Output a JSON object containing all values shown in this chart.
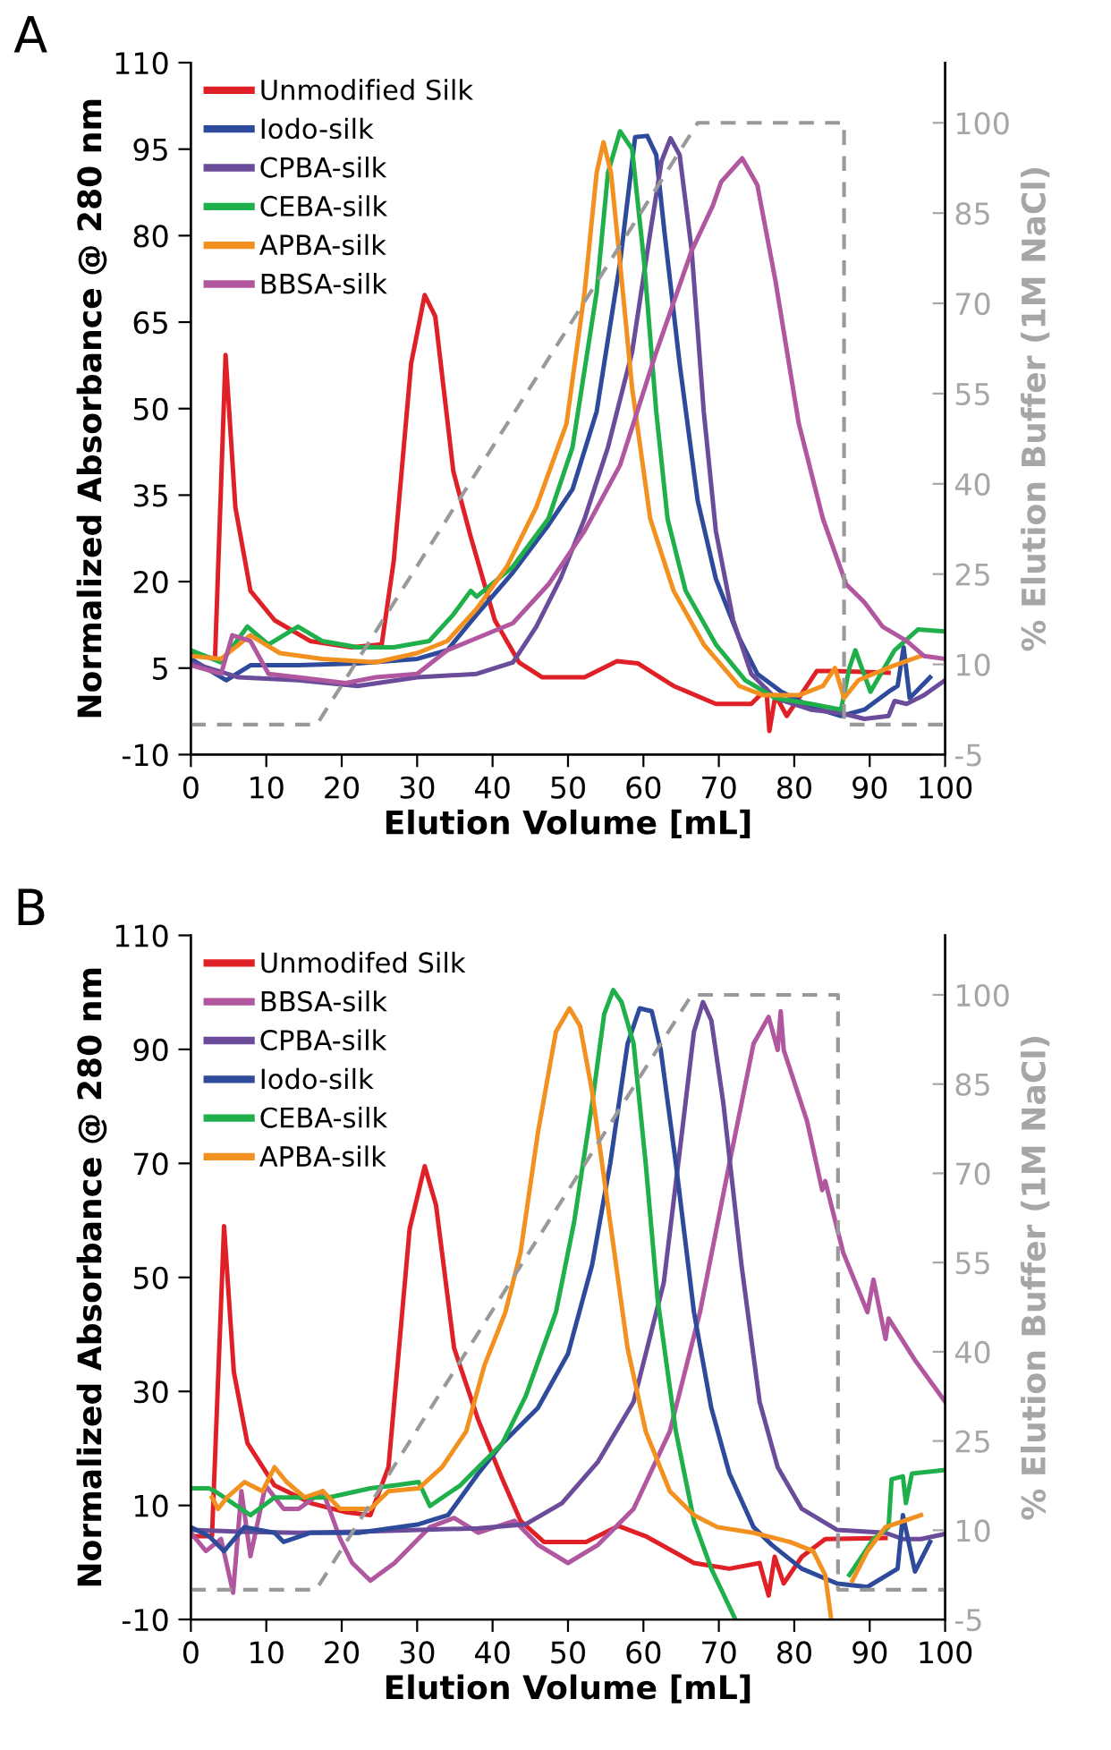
{
  "chart_data": [
    {
      "type": "line",
      "title": "A",
      "xlabel": "Elution Volume [mL]",
      "ylabel": "Normalized Absorbance @ 280 nm",
      "y2label": "% Elution Buffer (1M NaCl)",
      "xlim": [
        0,
        100
      ],
      "xticks": [
        0,
        10,
        20,
        30,
        40,
        50,
        60,
        70,
        80,
        90,
        100
      ],
      "ylim": [
        -10,
        110
      ],
      "yticks": [
        -10,
        5,
        20,
        35,
        50,
        65,
        80,
        95,
        110
      ],
      "y2lim": [
        -5,
        110
      ],
      "y2ticks": [
        -5,
        10,
        25,
        40,
        55,
        70,
        85,
        100
      ],
      "legend": "top left",
      "grid": false,
      "series": [
        {
          "name": "Unmodified Silk",
          "color": "#e02027",
          "x": [
            0,
            3.2,
            4.6,
            5.9,
            7.9,
            11.1,
            15.8,
            21.3,
            25.3,
            26.9,
            29.2,
            31.0,
            32.4,
            34.8,
            37.1,
            40.3,
            43.5,
            46.6,
            52.2,
            56.5,
            59.3,
            64.0,
            69.6,
            74.3,
            76.3,
            76.7,
            77.5,
            79.0,
            83.0,
            85.4,
            92.5
          ],
          "values": [
            7.6,
            6.6,
            59.3,
            32.9,
            18.4,
            13.3,
            9.7,
            8.6,
            9.1,
            23.6,
            57.8,
            69.7,
            66.0,
            39.1,
            27.8,
            13.3,
            6.0,
            3.4,
            3.4,
            6.2,
            5.8,
            1.9,
            -1.2,
            -1.2,
            1.4,
            -5.9,
            0.3,
            -3.3,
            4.5,
            4.5,
            4.2
          ]
        },
        {
          "name": "Iodo-silk",
          "color": "#2e4a9a",
          "x": [
            0,
            4.7,
            7.9,
            14.2,
            22.1,
            30.0,
            34.0,
            37.9,
            42.7,
            47.4,
            50.6,
            53.8,
            56.9,
            58.9,
            60.5,
            61.7,
            62.8,
            64.8,
            67.2,
            69.6,
            72.7,
            75.1,
            78.3,
            82.2,
            86.2,
            89.3,
            92.5,
            93.7,
            94.5,
            95.3,
            98.0
          ],
          "values": [
            6.6,
            2.9,
            5.5,
            5.5,
            5.8,
            6.6,
            8.1,
            14.3,
            21.6,
            29.8,
            36.0,
            49.5,
            75.3,
            97.1,
            97.3,
            94.0,
            80.5,
            57.8,
            34.0,
            20.5,
            10.2,
            4.0,
            0.9,
            -1.7,
            -3.3,
            -2.2,
            0.9,
            1.9,
            8.6,
            -0.2,
            3.4
          ]
        },
        {
          "name": "CPBA-silk",
          "color": "#6b4c9a",
          "x": [
            0,
            6.3,
            14.2,
            22.1,
            30.0,
            37.9,
            42.7,
            45.8,
            49.0,
            52.2,
            55.3,
            58.5,
            60.9,
            62.4,
            63.6,
            64.8,
            66.4,
            68.0,
            69.6,
            71.9,
            74.3,
            77.5,
            82.2,
            86.2,
            89.3,
            92.5,
            93.3,
            94.9,
            97.2,
            100
          ],
          "values": [
            6.0,
            3.4,
            2.9,
            1.9,
            3.4,
            4.0,
            6.0,
            12.2,
            20.5,
            30.9,
            43.3,
            59.8,
            80.5,
            92.9,
            96.9,
            94.0,
            77.4,
            49.5,
            28.8,
            13.3,
            4.0,
            -0.2,
            -2.2,
            -2.8,
            -3.8,
            -3.3,
            -0.7,
            -1.2,
            0.3,
            2.9
          ]
        },
        {
          "name": "CEBA-silk",
          "color": "#1fb04b",
          "x": [
            0,
            4.0,
            7.5,
            10.3,
            14.2,
            17.4,
            22.1,
            26.9,
            31.6,
            34.8,
            37.1,
            37.9,
            42.7,
            47.4,
            50.6,
            53.8,
            55.3,
            56.9,
            58.5,
            60.1,
            61.7,
            63.2,
            65.6,
            69.6,
            73.5,
            77.5,
            82.2,
            86.2,
            87.3,
            88.1,
            90.1,
            93.3,
            96.4,
            99.6
          ],
          "values": [
            8.1,
            6.0,
            12.2,
            9.1,
            12.2,
            9.7,
            8.6,
            8.6,
            9.7,
            14.3,
            18.4,
            17.4,
            22.6,
            30.9,
            43.3,
            70.2,
            90.9,
            98.1,
            95.0,
            75.3,
            49.5,
            30.9,
            18.4,
            9.1,
            2.9,
            -0.2,
            -1.2,
            -2.2,
            5.0,
            8.1,
            0.9,
            8.1,
            11.7,
            11.4
          ]
        },
        {
          "name": "APBA-silk",
          "color": "#f29120",
          "x": [
            0,
            4.0,
            7.9,
            11.8,
            17.4,
            24.5,
            30.0,
            34.0,
            37.9,
            41.9,
            45.8,
            49.8,
            52.2,
            53.8,
            54.7,
            55.7,
            56.9,
            58.5,
            60.9,
            64.0,
            68.0,
            72.7,
            75.9,
            80.6,
            83.8,
            85.4,
            86.6,
            88.5,
            93.3,
            96.8
          ],
          "values": [
            7.1,
            6.6,
            10.7,
            7.6,
            6.6,
            6.0,
            7.6,
            9.7,
            15.3,
            22.6,
            32.9,
            47.4,
            70.2,
            90.9,
            96.2,
            90.9,
            75.3,
            53.6,
            30.9,
            18.4,
            9.1,
            1.9,
            0.3,
            0.3,
            1.9,
            5.0,
            -0.2,
            2.9,
            5.5,
            7.1
          ]
        },
        {
          "name": "BBSA-silk",
          "color": "#b0579f",
          "x": [
            0,
            4.0,
            5.5,
            7.9,
            10.3,
            14.2,
            20.5,
            24.5,
            30.0,
            34.0,
            37.9,
            42.7,
            47.4,
            52.2,
            56.9,
            61.7,
            66.4,
            69.2,
            70.3,
            73.1,
            75.1,
            77.5,
            80.6,
            83.8,
            86.9,
            89.3,
            91.7,
            94.9,
            97.2,
            100
          ],
          "values": [
            5.5,
            4.0,
            10.7,
            9.7,
            4.0,
            3.4,
            2.4,
            3.4,
            4.0,
            8.1,
            10.2,
            12.8,
            19.5,
            28.8,
            40.2,
            59.8,
            77.4,
            85.2,
            89.3,
            93.4,
            88.8,
            72.2,
            47.4,
            30.9,
            19.5,
            16.4,
            12.2,
            9.7,
            7.1,
            6.6
          ]
        },
        {
          "color": "#999999",
          "axis": "y2",
          "line_style": "dashed",
          "x": [
            0,
            16.7,
            67.2,
            86.6,
            86.6,
            100
          ],
          "values": [
            0,
            0,
            100,
            100,
            0,
            0
          ]
        }
      ]
    },
    {
      "type": "line",
      "title": "B",
      "xlabel": "Elution Volume [mL]",
      "ylabel": "Normalized Absorbance @ 280 nm",
      "y2label": "% Elution Buffer (1M NaCl)",
      "xlim": [
        0,
        100
      ],
      "xticks": [
        0,
        10,
        20,
        30,
        40,
        50,
        60,
        70,
        80,
        90,
        100
      ],
      "ylim": [
        -10,
        110
      ],
      "yticks": [
        -10,
        10,
        30,
        50,
        70,
        90,
        110
      ],
      "y2lim": [
        -5,
        110
      ],
      "y2ticks": [
        -5,
        10,
        25,
        40,
        55,
        70,
        85,
        100
      ],
      "legend": "top left",
      "grid": false,
      "series": [
        {
          "name": "Unmodifed Silk",
          "color": "#e02027",
          "x": [
            0,
            2.8,
            4.4,
            5.7,
            7.5,
            11.1,
            15.9,
            20.6,
            23.8,
            26.2,
            29.0,
            31.0,
            32.5,
            34.9,
            38.1,
            41.3,
            43.7,
            46.8,
            52.4,
            56.7,
            60.3,
            66.7,
            71.4,
            75.4,
            76.6,
            77.4,
            78.6,
            81.0,
            84.1,
            92.1
          ],
          "values": [
            4.6,
            4.6,
            59.0,
            33.4,
            20.9,
            13.5,
            10.4,
            8.8,
            8.3,
            16.7,
            58.5,
            69.5,
            62.7,
            37.6,
            25.0,
            14.6,
            7.3,
            3.6,
            3.6,
            6.4,
            4.6,
            -0.1,
            -1.1,
            -0.1,
            -5.8,
            1.0,
            -3.7,
            1.0,
            4.1,
            4.3
          ]
        },
        {
          "name": "BBSA-silk",
          "color": "#b0579f",
          "x": [
            0,
            2.0,
            4.0,
            5.6,
            6.7,
            7.9,
            9.9,
            12.3,
            14.3,
            17.5,
            19.8,
            21.4,
            23.8,
            27.0,
            31.7,
            34.9,
            38.1,
            42.9,
            46.0,
            50.0,
            54.0,
            58.7,
            63.5,
            67.5,
            71.4,
            74.6,
            76.6,
            77.8,
            78.2,
            78.6,
            81.7,
            83.7,
            84.1,
            86.5,
            89.7,
            90.5,
            92.1,
            92.5,
            96.0,
            100
          ],
          "values": [
            5.2,
            2.0,
            4.1,
            -5.3,
            12.5,
            1.1,
            13.5,
            9.4,
            9.4,
            12.5,
            4.1,
            -0.1,
            -3.2,
            -0.1,
            6.2,
            7.8,
            5.2,
            7.3,
            3.1,
            -0.1,
            3.1,
            9.4,
            23.0,
            43.9,
            70.0,
            91.0,
            95.7,
            89.9,
            96.7,
            89.9,
            77.4,
            65.3,
            66.9,
            54.3,
            43.9,
            49.6,
            39.2,
            42.8,
            35.5,
            28.2
          ]
        },
        {
          "name": "CPBA-silk",
          "color": "#6b4c9a",
          "x": [
            0,
            6.3,
            14.3,
            22.2,
            30.2,
            38.1,
            44.4,
            49.2,
            54.0,
            58.7,
            62.7,
            65.1,
            66.7,
            67.9,
            69.0,
            70.6,
            73.0,
            75.4,
            77.8,
            81.0,
            85.7,
            92.1,
            94.4,
            96.8,
            100
          ],
          "values": [
            5.7,
            5.4,
            5.2,
            5.4,
            5.7,
            6.0,
            6.7,
            10.4,
            17.7,
            28.2,
            49.1,
            75.3,
            93.1,
            98.3,
            95.1,
            80.5,
            52.2,
            28.2,
            16.7,
            9.4,
            5.7,
            5.2,
            4.1,
            4.1,
            5.0
          ]
        },
        {
          "name": "Iodo-silk",
          "color": "#2e4a9a",
          "x": [
            0,
            2.4,
            4.4,
            7.1,
            11.1,
            12.3,
            15.9,
            22.2,
            30.2,
            34.1,
            38.1,
            41.3,
            46.0,
            50.0,
            53.2,
            55.6,
            57.9,
            59.5,
            61.1,
            62.3,
            64.3,
            66.7,
            69.0,
            71.4,
            74.6,
            77.0,
            81.0,
            85.7,
            89.7,
            93.7,
            94.4,
            96.0,
            98.0
          ],
          "values": [
            6.2,
            4.6,
            2.0,
            6.2,
            5.2,
            3.6,
            5.2,
            5.2,
            6.7,
            8.3,
            15.6,
            20.9,
            27.1,
            36.6,
            52.2,
            70.0,
            91.0,
            97.2,
            96.7,
            89.9,
            70.0,
            43.9,
            27.1,
            15.6,
            6.2,
            3.1,
            -1.1,
            -3.7,
            -4.3,
            -1.1,
            8.3,
            -1.6,
            3.6
          ]
        },
        {
          "name": "CEBA-silk",
          "color": "#1fb04b",
          "x": [
            0,
            2.4,
            3.2,
            7.9,
            11.1,
            18.3,
            23.8,
            27.0,
            30.2,
            31.7,
            35.7,
            38.1,
            41.3,
            44.4,
            48.4,
            50.8,
            53.2,
            54.8,
            56.0,
            57.1,
            58.7,
            60.3,
            61.9,
            64.3,
            66.7,
            69.0,
            72.2,
            80.0,
            87.3,
            90.5,
            92.5,
            92.9,
            94.4,
            94.8,
            95.6,
            100
          ],
          "values": [
            13.0,
            13.0,
            12.5,
            8.3,
            11.4,
            11.4,
            13.0,
            13.5,
            14.1,
            9.9,
            13.5,
            16.7,
            20.9,
            29.2,
            43.9,
            59.6,
            80.5,
            96.2,
            100.4,
            98.3,
            91.0,
            70.0,
            46.0,
            23.0,
            7.3,
            -1.1,
            -10.0,
            null,
            -2.2,
            4.1,
            6.2,
            14.6,
            15.1,
            10.4,
            15.6,
            16.2
          ]
        },
        {
          "name": "APBA-silk",
          "color": "#f29120",
          "x": [
            2.8,
            3.6,
            4.8,
            7.1,
            9.5,
            11.1,
            12.7,
            15.1,
            17.5,
            19.8,
            23.8,
            26.2,
            30.2,
            33.3,
            36.5,
            38.9,
            41.7,
            43.7,
            46.0,
            48.4,
            50.2,
            51.6,
            53.2,
            55.6,
            57.9,
            60.3,
            63.5,
            66.7,
            69.8,
            74.6,
            79.4,
            82.5,
            84.1,
            84.9,
            86.3,
            87.7,
            89.7,
            92.1,
            96.8
          ],
          "values": [
            11.4,
            9.4,
            11.4,
            14.1,
            12.5,
            16.7,
            14.1,
            11.4,
            12.5,
            9.4,
            9.4,
            12.5,
            13.0,
            16.7,
            23.0,
            34.5,
            43.9,
            54.3,
            75.3,
            93.1,
            97.2,
            94.1,
            82.6,
            59.6,
            37.6,
            23.0,
            12.5,
            8.3,
            6.2,
            5.2,
            3.6,
            2.0,
            -2.2,
            -10.0,
            null,
            -3.2,
            2.0,
            6.2,
            8.3
          ]
        },
        {
          "color": "#999999",
          "axis": "y2",
          "line_style": "dashed",
          "x": [
            0,
            16.6,
            66.4,
            85.8,
            85.8,
            100
          ],
          "values": [
            0,
            0,
            100,
            100,
            0,
            0
          ]
        }
      ]
    }
  ]
}
